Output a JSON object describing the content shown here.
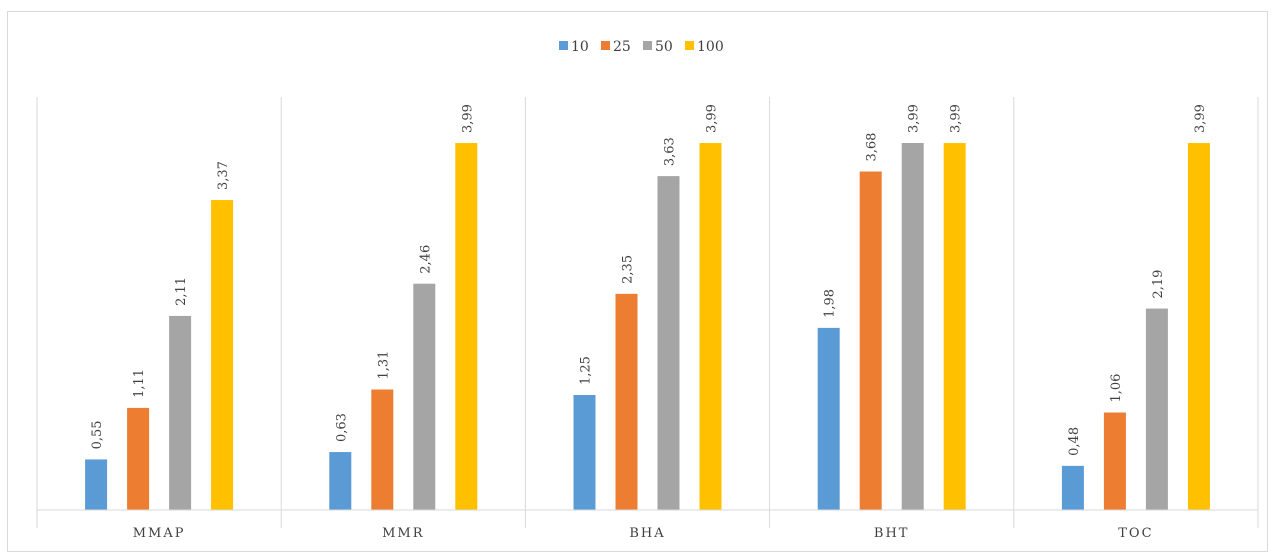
{
  "chart_data": {
    "type": "bar",
    "categories": [
      "MMAP",
      "MMR",
      "BHA",
      "BHT",
      "TOC"
    ],
    "series": [
      {
        "name": "10",
        "color": "#5b9bd5",
        "values": [
          0.55,
          0.63,
          1.25,
          1.98,
          0.48
        ],
        "labels": [
          "0,55",
          "0,63",
          "1,25",
          "1,98",
          "0,48"
        ]
      },
      {
        "name": "25",
        "color": "#ed7d31",
        "values": [
          1.11,
          1.31,
          2.35,
          3.68,
          1.06
        ],
        "labels": [
          "1,11",
          "1,31",
          "2,35",
          "3,68",
          "1,06"
        ]
      },
      {
        "name": "50",
        "color": "#a5a5a5",
        "values": [
          2.11,
          2.46,
          3.63,
          3.99,
          2.19
        ],
        "labels": [
          "2,11",
          "2,46",
          "3,63",
          "3,99",
          "2,19"
        ]
      },
      {
        "name": "100",
        "color": "#ffc000",
        "values": [
          3.37,
          3.99,
          3.99,
          3.99,
          3.99
        ],
        "labels": [
          "3,37",
          "3,99",
          "3,99",
          "3,99",
          "3,99"
        ]
      }
    ],
    "ylim": [
      0,
      3.99
    ],
    "legend_position": "top",
    "grid": "vertical category separators"
  }
}
